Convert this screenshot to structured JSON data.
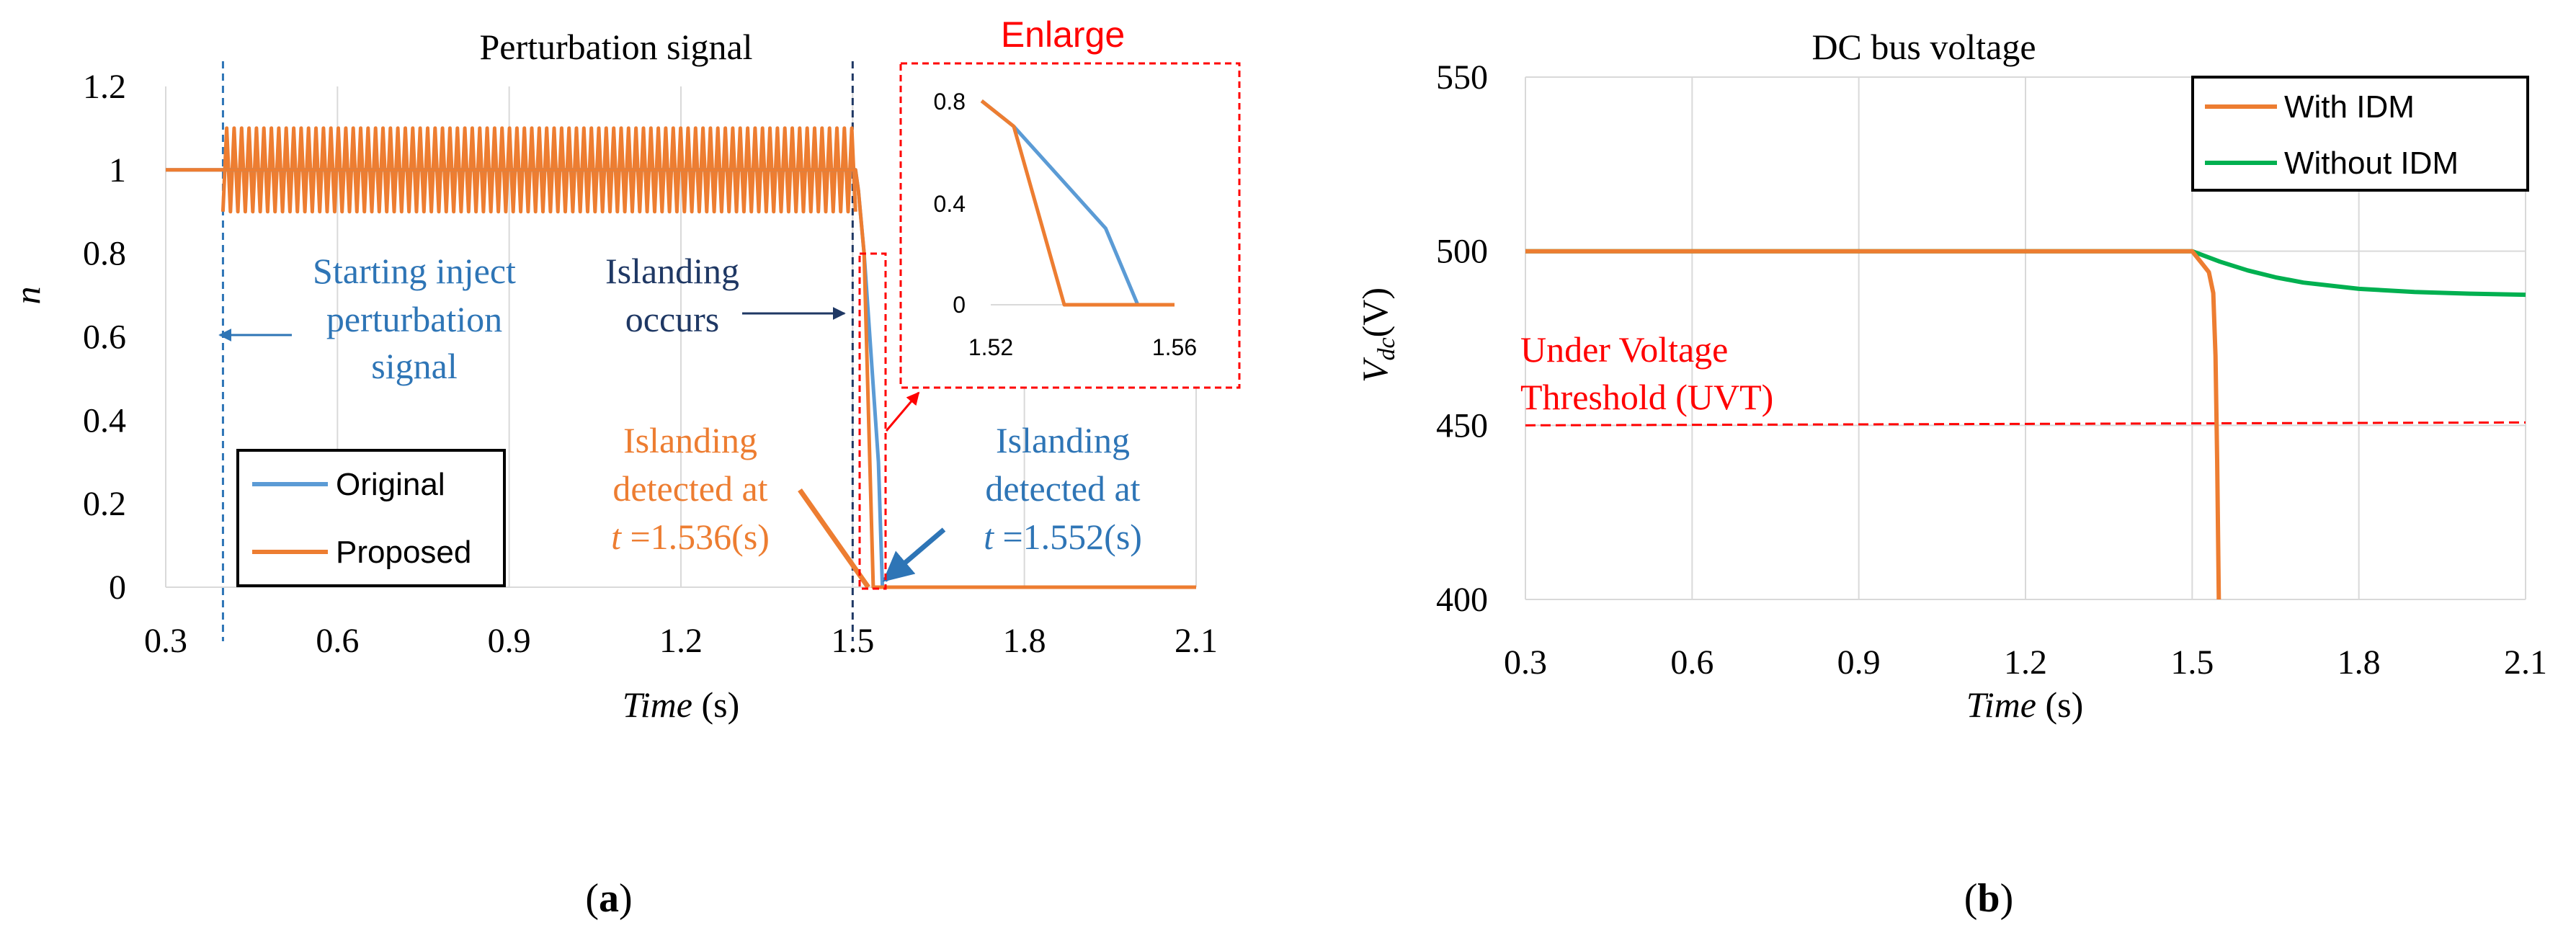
{
  "panels": {
    "a": {
      "caption_letter": "a",
      "caption_open": "(",
      "caption_close": ")",
      "chart_data": {
        "type": "line",
        "title": "Perturbation signal",
        "xlabel_main": "Time",
        "xlabel_unit": " (s)",
        "ylabel": "n",
        "xlim": [
          0.3,
          2.1
        ],
        "ylim": [
          0,
          1.2
        ],
        "x_ticks": [
          0.3,
          0.6,
          0.9,
          1.2,
          1.5,
          1.8,
          2.1
        ],
        "x_tick_labels": [
          "0.3",
          "0.6",
          "0.9",
          "1.2",
          "1.5",
          "1.8",
          "2.1"
        ],
        "y_ticks": [
          0,
          0.2,
          0.4,
          0.6,
          0.8,
          1,
          1.2
        ],
        "y_tick_labels": [
          "0",
          "0.2",
          "0.4",
          "0.6",
          "0.8",
          "1",
          "1.2"
        ],
        "grid": "vertical",
        "legend_position": "bottom-left",
        "series": [
          {
            "name": "Original",
            "color": "#5B9BD5",
            "description": "n = 1 until 0.4 s, oscillates between 0.9 and 1.1 until islanding at ~1.51 s, then falls to 0 by 1.552 s",
            "points": [
              [
                0.3,
                1
              ],
              [
                0.4,
                1
              ],
              [
                1.505,
                1.0
              ],
              [
                1.51,
                0.95
              ],
              [
                1.52,
                0.8
              ],
              [
                1.525,
                0.7
              ],
              [
                1.545,
                0.3
              ],
              [
                1.552,
                0
              ],
              [
                2.1,
                0
              ]
            ]
          },
          {
            "name": "Proposed",
            "color": "#ED7D31",
            "description": "n = 1 until 0.4 s, oscillates between 0.9 and 1.1 until islanding at ~1.51 s, then falls to 0 by 1.536 s",
            "points": [
              [
                0.3,
                1
              ],
              [
                0.4,
                1
              ],
              [
                1.505,
                1.0
              ],
              [
                1.51,
                0.95
              ],
              [
                1.52,
                0.8
              ],
              [
                1.536,
                0
              ],
              [
                2.1,
                0
              ]
            ]
          }
        ],
        "oscillation": {
          "start": 0.4,
          "end": 1.505,
          "min": 0.9,
          "max": 1.1,
          "cycles": 85
        },
        "vlines": [
          {
            "x": 0.4,
            "color": "#2E75B6",
            "label": "inject-start"
          },
          {
            "x": 1.5,
            "color": "#1F3864",
            "label": "islanding"
          }
        ],
        "annotations": {
          "starting_inject": [
            "Starting inject",
            "perturbation",
            "signal"
          ],
          "islanding_occurs": [
            "Islanding",
            "occurs"
          ],
          "detected_proposed": [
            "Islanding",
            "detected at",
            "t",
            " =1.536(s)"
          ],
          "detected_original": [
            "Islanding",
            "detected at",
            "t",
            " =1.552(s)"
          ],
          "enlarge_title": "Enlarge"
        },
        "inset": {
          "xlim": [
            1.52,
            1.56
          ],
          "ylim": [
            0,
            0.8
          ],
          "x_tick_labels": [
            "1.52",
            "1.56"
          ],
          "y_tick_labels": [
            "0",
            "0.4",
            "0.8"
          ],
          "original_points": [
            [
              1.518,
              0.8
            ],
            [
              1.525,
              0.7
            ],
            [
              1.545,
              0.3
            ],
            [
              1.552,
              0
            ],
            [
              1.56,
              0
            ]
          ],
          "proposed_points": [
            [
              1.518,
              0.8
            ],
            [
              1.525,
              0.7
            ],
            [
              1.536,
              0
            ],
            [
              1.56,
              0
            ]
          ]
        },
        "colors": {
          "orange": "#ED7D31",
          "blue": "#5B9BD5",
          "dark_blue": "#1F3864",
          "mid_blue": "#2E75B6",
          "red": "#FF0000"
        }
      }
    },
    "b": {
      "caption_letter": "b",
      "caption_open": "(",
      "caption_close": ")",
      "chart_data": {
        "type": "line",
        "title": "DC bus voltage",
        "xlabel_main": "Time",
        "xlabel_unit": " (s)",
        "ylabel_main": "V",
        "ylabel_sub": "dc",
        "ylabel_unit": "(V)",
        "xlim": [
          0.3,
          2.1
        ],
        "ylim": [
          400,
          550
        ],
        "x_ticks": [
          0.3,
          0.6,
          0.9,
          1.2,
          1.5,
          1.8,
          2.1
        ],
        "x_tick_labels": [
          "0.3",
          "0.6",
          "0.9",
          "1.2",
          "1.5",
          "1.8",
          "2.1"
        ],
        "y_ticks": [
          400,
          450,
          500,
          550
        ],
        "y_tick_labels": [
          "400",
          "450",
          "500",
          "550"
        ],
        "grid": "both",
        "legend_position": "top-right",
        "series": [
          {
            "name": "With IDM",
            "color": "#ED7D31",
            "points": [
              [
                0.3,
                500
              ],
              [
                1.5,
                500
              ],
              [
                1.51,
                498
              ],
              [
                1.52,
                496
              ],
              [
                1.53,
                494
              ],
              [
                1.538,
                488
              ],
              [
                1.542,
                470
              ],
              [
                1.545,
                440
              ],
              [
                1.548,
                400
              ]
            ]
          },
          {
            "name": "Without IDM",
            "color": "#00B050",
            "points": [
              [
                0.3,
                500
              ],
              [
                1.5,
                500
              ],
              [
                1.55,
                497
              ],
              [
                1.6,
                494.5
              ],
              [
                1.65,
                492.5
              ],
              [
                1.7,
                491
              ],
              [
                1.8,
                489.2
              ],
              [
                1.9,
                488.3
              ],
              [
                2.0,
                487.8
              ],
              [
                2.1,
                487.5
              ]
            ]
          }
        ],
        "threshold": {
          "value": 450,
          "color": "#FF0000",
          "label_lines": [
            "Under Voltage",
            "Threshold (UVT)"
          ]
        }
      }
    }
  }
}
